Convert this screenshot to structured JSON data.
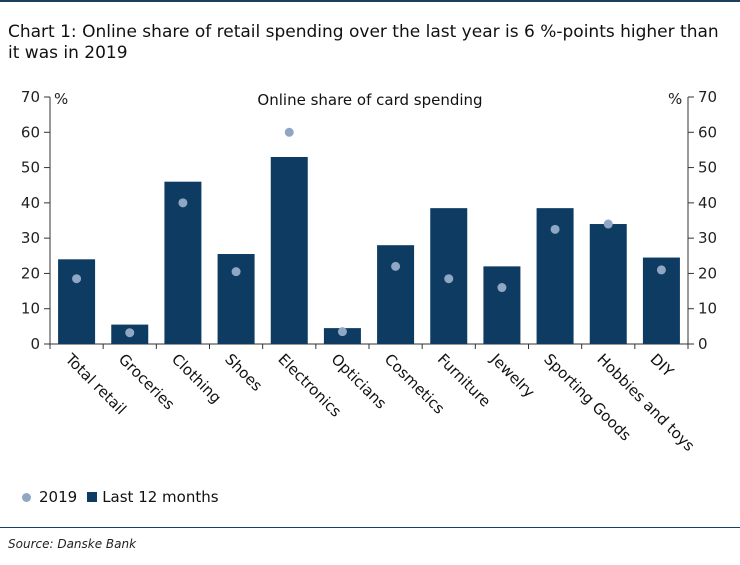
{
  "title": "Chart 1: Online share of retail spending over the last year is 6 %-points higher than it was in 2019",
  "source": "Source: Danske Bank",
  "chart_data": {
    "type": "bar",
    "title": "Online share of card spending",
    "left_unit": "%",
    "right_unit": "%",
    "ylim": [
      0,
      70
    ],
    "yticks": [
      0,
      10,
      20,
      30,
      40,
      50,
      60,
      70
    ],
    "categories": [
      "Total retail",
      "Groceries",
      "Clothing",
      "Shoes",
      "Electronics",
      "Opticians",
      "Cosmetics",
      "Furniture",
      "Jewelry",
      "Sporting Goods",
      "Hobbies and toys",
      "DIY"
    ],
    "series": [
      {
        "name": "Last 12 months",
        "kind": "bar",
        "color": "#0d3b62",
        "values": [
          24,
          5.5,
          46,
          25.5,
          53,
          4.5,
          28,
          38.5,
          22,
          38.5,
          34,
          24.5
        ]
      },
      {
        "name": "2019",
        "kind": "dot",
        "color": "#8fa7c4",
        "values": [
          18.5,
          3.2,
          40,
          20.5,
          60,
          3.5,
          22,
          18.5,
          16,
          32.5,
          34,
          21
        ]
      }
    ],
    "legend": [
      "2019",
      "Last 12 months"
    ]
  }
}
